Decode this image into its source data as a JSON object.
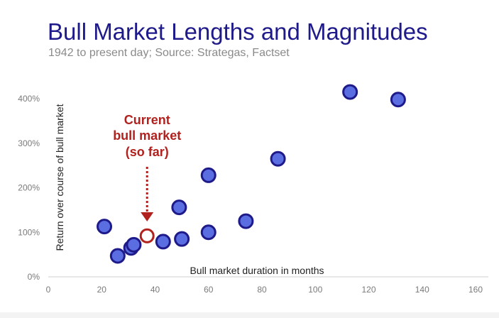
{
  "chart_data": {
    "type": "scatter",
    "title": "Bull Market Lengths and Magnitudes",
    "subtitle": "1942 to present day; Source: Strategas, Factset",
    "xlabel": "Bull market duration in months",
    "ylabel": "Return over course of bull market",
    "xlim": [
      0,
      165
    ],
    "ylim": [
      0,
      440
    ],
    "x_ticks": [
      {
        "value": 0,
        "label": "0"
      },
      {
        "value": 20,
        "label": "20"
      },
      {
        "value": 40,
        "label": "40"
      },
      {
        "value": 60,
        "label": "60"
      },
      {
        "value": 80,
        "label": "80"
      },
      {
        "value": 100,
        "label": "100"
      },
      {
        "value": 120,
        "label": "120"
      },
      {
        "value": 140,
        "label": "140"
      },
      {
        "value": 160,
        "label": "160"
      }
    ],
    "y_ticks": [
      {
        "value": 0,
        "label": "0%"
      },
      {
        "value": 100,
        "label": "100%"
      },
      {
        "value": 200,
        "label": "200%"
      },
      {
        "value": 300,
        "label": "300%"
      },
      {
        "value": 400,
        "label": "400%"
      }
    ],
    "grid": false,
    "points": [
      {
        "x": 21,
        "y": 113
      },
      {
        "x": 26,
        "y": 47
      },
      {
        "x": 31,
        "y": 65
      },
      {
        "x": 32,
        "y": 72
      },
      {
        "x": 43,
        "y": 79
      },
      {
        "x": 49,
        "y": 156
      },
      {
        "x": 50,
        "y": 85
      },
      {
        "x": 60,
        "y": 228
      },
      {
        "x": 60,
        "y": 100
      },
      {
        "x": 74,
        "y": 125
      },
      {
        "x": 86,
        "y": 265
      },
      {
        "x": 113,
        "y": 415
      },
      {
        "x": 131,
        "y": 398
      }
    ],
    "highlight": {
      "x": 37,
      "y": 92,
      "label_lines": [
        "Current",
        "bull market",
        "(so far)"
      ]
    },
    "colors": {
      "point_fill": "#5b6ee1",
      "point_stroke": "#1f1a8a",
      "highlight_stroke": "#b1221f",
      "title": "#1f1a8a"
    }
  }
}
